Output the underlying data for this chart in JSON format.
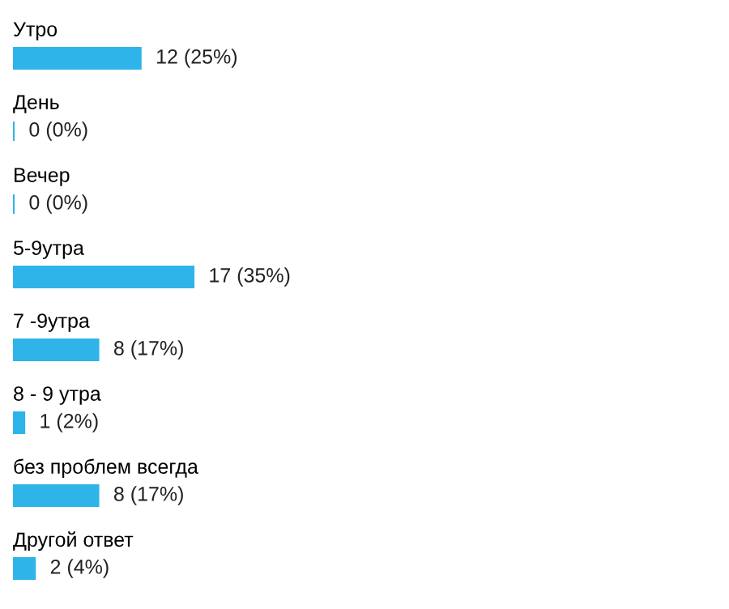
{
  "chart_data": {
    "type": "bar",
    "orientation": "horizontal",
    "categories": [
      "Утро",
      "День",
      "Вечер",
      "5-9утра",
      "7 -9утра",
      "8 - 9 утра",
      "без проблем всегда",
      "Другой ответ"
    ],
    "values": [
      12,
      0,
      0,
      17,
      8,
      1,
      8,
      2
    ],
    "value_labels": [
      "12 (25%)",
      "0 (0%)",
      "0 (0%)",
      "17 (35%)",
      "8 (17%)",
      "1 (2%)",
      "8 (17%)",
      "2 (4%)"
    ],
    "color": "#2fb4e9"
  }
}
